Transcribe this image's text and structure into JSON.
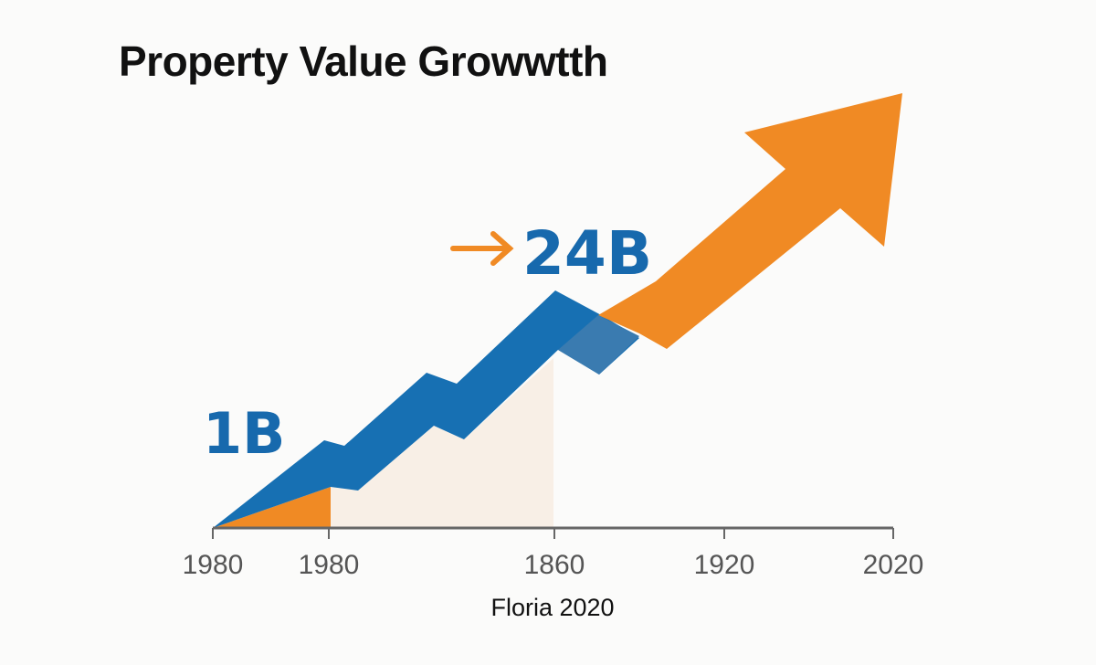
{
  "chart_data": {
    "type": "area",
    "title": "Property Value Growwtth",
    "xlabel": "Floria 2020",
    "x_tick_labels": [
      "1980",
      "1980",
      "1860",
      "1920",
      "2020"
    ],
    "annotations": [
      {
        "text": "1B",
        "color": "#1769ad"
      },
      {
        "text": "24B",
        "color": "#1769ad",
        "arrow_color": "#f08a24"
      }
    ],
    "series_colors": {
      "blue_band": "#1770b3",
      "orange_arrow": "#f08a24",
      "shaded_area": "#f8efe6"
    },
    "grid": false
  }
}
